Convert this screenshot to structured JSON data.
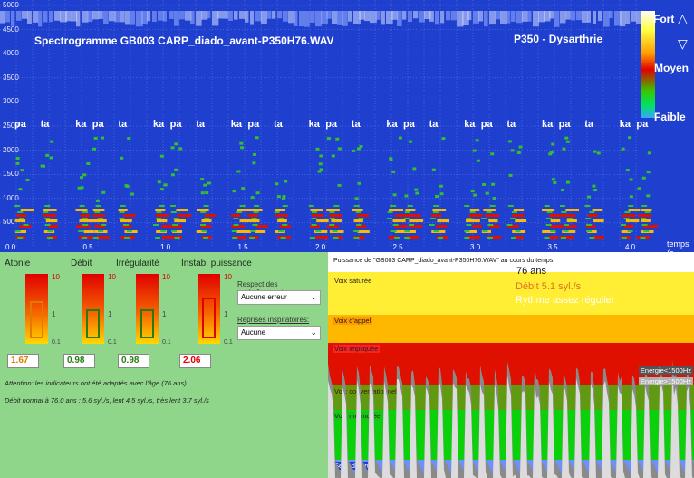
{
  "spectrogram": {
    "title": "Spectrogramme GB003 CARP_diado_avant-P350H76.WAV",
    "patient": "P350 -  Dysarthrie",
    "freq_ticks": [
      {
        "label": "5000",
        "hz": 5000
      },
      {
        "label": "4500",
        "hz": 4500
      },
      {
        "label": "4000",
        "hz": 4000
      },
      {
        "label": "3500",
        "hz": 3500
      },
      {
        "label": "3000",
        "hz": 3000
      },
      {
        "label": "2500",
        "hz": 2500
      },
      {
        "label": "2000",
        "hz": 2000
      },
      {
        "label": "1500",
        "hz": 1500
      },
      {
        "label": "1000",
        "hz": 1000
      },
      {
        "label": "500",
        "hz": 500
      }
    ],
    "time_ticks": [
      "0.0",
      "0.5",
      "1.0",
      "1.5",
      "2.0",
      "2.5",
      "3.0",
      "3.5",
      "4.0"
    ],
    "time_axis_label": "temps (s",
    "syllables": [
      "pa",
      "ta",
      "ka",
      "pa",
      "ta",
      "ka",
      "pa",
      "ta",
      "ka",
      "pa",
      "ta",
      "ka",
      "pa",
      "ta",
      "ka",
      "pa",
      "ta",
      "ka",
      "pa",
      "ta",
      "ka",
      "pa",
      "ta",
      "ka",
      "pa"
    ],
    "scale": {
      "top": "Fort",
      "mid": "Moyen",
      "bottom": "Faible"
    }
  },
  "indicators": {
    "items": [
      {
        "title": "Atonie",
        "max": "10",
        "mid": "1",
        "min": "0.1",
        "value": "1.67",
        "level": 0.61,
        "color": "#e07a00"
      },
      {
        "title": "Débit",
        "max": "10",
        "mid": "1",
        "min": "0.1",
        "value": "0.98",
        "level": 0.49,
        "color": "#2a7a14"
      },
      {
        "title": "Irrégularité",
        "max": "10",
        "mid": "1",
        "min": "0.1",
        "value": "0.98",
        "level": 0.49,
        "color": "#2a7a14"
      },
      {
        "title": "Instab. puissance",
        "max": "10",
        "mid": "1",
        "min": "0.1",
        "value": "2.06",
        "level": 0.66,
        "color": "#e00000"
      }
    ],
    "respect_label": "Respect des enchaînements:",
    "respect_value": "Aucune erreur",
    "reprises_label": "Reprises inspiratoires:",
    "reprises_value": "Aucune",
    "note1": "Attention: les indicateurs ont été adaptés avec l'âge (76 ans)",
    "note2": "Débit normal à 76.0 ans : 5.6 syl./s, lent 4.5 syl./s, très lent 3.7 syl./s"
  },
  "power": {
    "title": "Puissance de \"GB003 CARP_diado_avant-P350H76.WAV\" au cours du temps",
    "age": "76 ans",
    "debit": "Débit 5.1 syl./s",
    "rythme": "Rythme assez régulier",
    "bands": [
      {
        "label": "Voix saturée",
        "color": "#ffee33",
        "label_bg": "#ffee33"
      },
      {
        "label": "Voix d'appel",
        "color": "#ffb800",
        "label_bg": "#ff9b00"
      },
      {
        "label": "Voix impliquée",
        "color": "#e01000",
        "label_bg": "#ff2020"
      },
      {
        "label": "Voix conversationnelle",
        "color": "#5f9a10",
        "label_bg": "#6c9a00"
      },
      {
        "label": "Voix murmurée",
        "color": "#0bd10b",
        "label_bg": "#16c016"
      },
      {
        "label": "Seuil de bruit",
        "color": "#6f8fff",
        "label_bg": "#1f3fcf"
      }
    ],
    "legend_low": "Energie<1500Hz",
    "legend_high": "Energie>1500Hz"
  }
}
